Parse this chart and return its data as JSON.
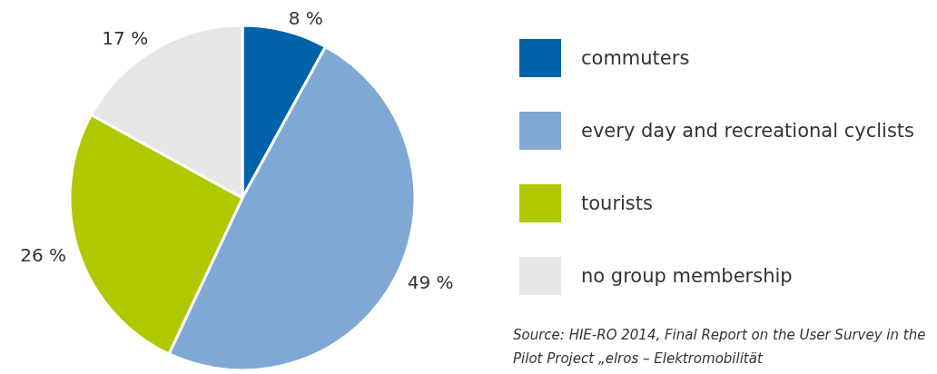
{
  "chart_data": {
    "type": "pie",
    "categories": [
      "commuters",
      "every day and recreational cyclists",
      "tourists",
      "no group membership"
    ],
    "values": [
      8,
      49,
      26,
      17
    ],
    "colors": [
      "#0062a8",
      "#7fa8d4",
      "#b0c800",
      "#e6e6e6"
    ],
    "value_labels": [
      "8 %",
      "49 %",
      "26 %",
      "17 %"
    ],
    "legend": "right",
    "annotations": [
      "Source: HIE-RO 2014, Final Report on the User Survey in the Pilot Project „elros – Elektromobilität"
    ]
  }
}
